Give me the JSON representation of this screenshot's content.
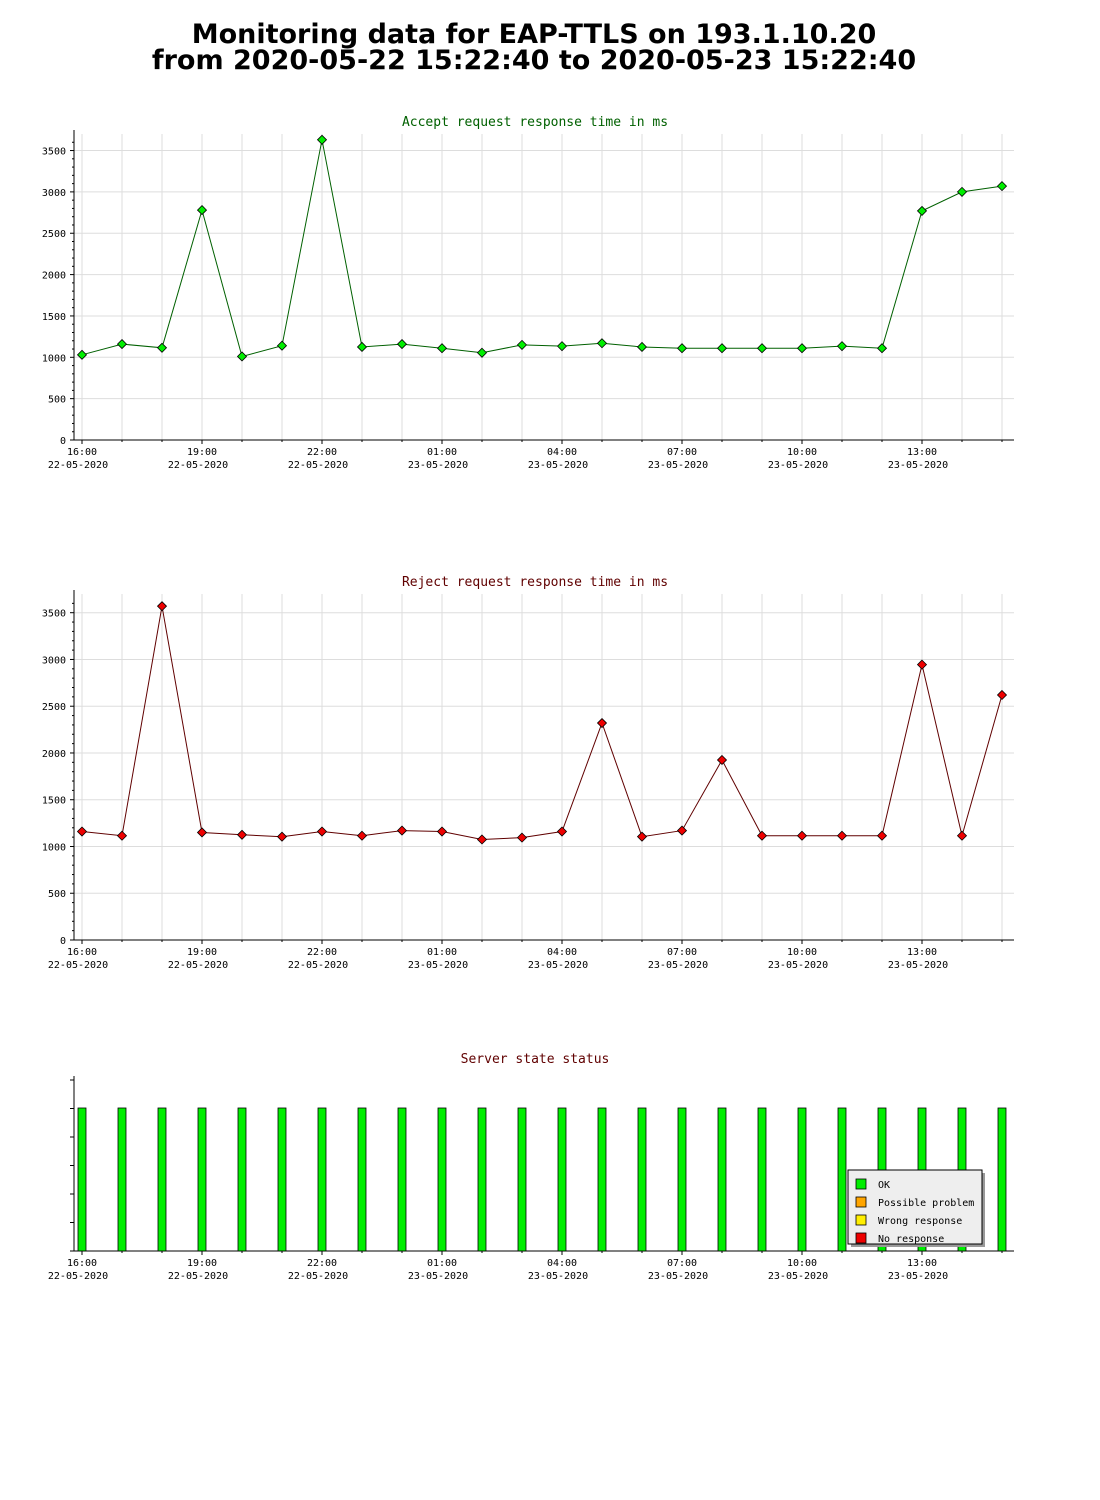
{
  "header": {
    "title_line1": "Monitoring data for EAP-TTLS on 193.1.10.20",
    "title_line2": "from 2020-05-22 15:22:40 to 2020-05-23 15:22:40"
  },
  "colors": {
    "accept_line": "#006000",
    "accept_marker": "#00ee00",
    "reject_line": "#600000",
    "reject_marker": "#ee0000",
    "status_title": "#600000",
    "ok": "#00ee00",
    "possible_problem": "#ffa500",
    "wrong_response": "#ffee00",
    "no_response": "#ee0000",
    "grid": "#dddddd"
  },
  "chart_data": [
    {
      "type": "line",
      "title": "Accept request response time in ms",
      "x_tick_labels": [
        {
          "time": "16:00",
          "date": "22-05-2020"
        },
        {
          "time": "19:00",
          "date": "22-05-2020"
        },
        {
          "time": "22:00",
          "date": "22-05-2020"
        },
        {
          "time": "01:00",
          "date": "23-05-2020"
        },
        {
          "time": "04:00",
          "date": "23-05-2020"
        },
        {
          "time": "07:00",
          "date": "23-05-2020"
        },
        {
          "time": "10:00",
          "date": "23-05-2020"
        },
        {
          "time": "13:00",
          "date": "23-05-2020"
        }
      ],
      "x": [
        "2020-05-22 16:00",
        "2020-05-22 17:00",
        "2020-05-22 18:00",
        "2020-05-22 19:00",
        "2020-05-22 20:00",
        "2020-05-22 21:00",
        "2020-05-22 22:00",
        "2020-05-22 23:00",
        "2020-05-23 00:00",
        "2020-05-23 01:00",
        "2020-05-23 02:00",
        "2020-05-23 03:00",
        "2020-05-23 04:00",
        "2020-05-23 05:00",
        "2020-05-23 06:00",
        "2020-05-23 07:00",
        "2020-05-23 08:00",
        "2020-05-23 09:00",
        "2020-05-23 10:00",
        "2020-05-23 11:00",
        "2020-05-23 12:00",
        "2020-05-23 13:00",
        "2020-05-23 14:00",
        "2020-05-23 15:00"
      ],
      "values": [
        1030,
        1160,
        1115,
        2780,
        1010,
        1140,
        3630,
        1125,
        1160,
        1110,
        1055,
        1150,
        1135,
        1170,
        1125,
        1110,
        1110,
        1110,
        1110,
        1135,
        1110,
        2770,
        3000,
        3070
      ],
      "ylim": [
        0,
        3700
      ],
      "y_ticks": [
        0,
        500,
        1000,
        1500,
        2000,
        2500,
        3000,
        3500
      ],
      "grid": true
    },
    {
      "type": "line",
      "title": "Reject request response time in ms",
      "x_tick_labels": [
        {
          "time": "16:00",
          "date": "22-05-2020"
        },
        {
          "time": "19:00",
          "date": "22-05-2020"
        },
        {
          "time": "22:00",
          "date": "22-05-2020"
        },
        {
          "time": "01:00",
          "date": "23-05-2020"
        },
        {
          "time": "04:00",
          "date": "23-05-2020"
        },
        {
          "time": "07:00",
          "date": "23-05-2020"
        },
        {
          "time": "10:00",
          "date": "23-05-2020"
        },
        {
          "time": "13:00",
          "date": "23-05-2020"
        }
      ],
      "x": [
        "2020-05-22 16:00",
        "2020-05-22 17:00",
        "2020-05-22 18:00",
        "2020-05-22 19:00",
        "2020-05-22 20:00",
        "2020-05-22 21:00",
        "2020-05-22 22:00",
        "2020-05-22 23:00",
        "2020-05-23 00:00",
        "2020-05-23 01:00",
        "2020-05-23 02:00",
        "2020-05-23 03:00",
        "2020-05-23 04:00",
        "2020-05-23 05:00",
        "2020-05-23 06:00",
        "2020-05-23 07:00",
        "2020-05-23 08:00",
        "2020-05-23 09:00",
        "2020-05-23 10:00",
        "2020-05-23 11:00",
        "2020-05-23 12:00",
        "2020-05-23 13:00",
        "2020-05-23 14:00",
        "2020-05-23 15:00"
      ],
      "values": [
        1160,
        1115,
        3570,
        1150,
        1125,
        1105,
        1160,
        1115,
        1170,
        1160,
        1075,
        1095,
        1160,
        2320,
        1105,
        1170,
        1925,
        1115,
        1115,
        1115,
        1115,
        2945,
        1115,
        2620
      ],
      "ylim": [
        0,
        3700
      ],
      "y_ticks": [
        0,
        500,
        1000,
        1500,
        2000,
        2500,
        3000,
        3500
      ],
      "grid": true
    },
    {
      "type": "bar",
      "title": "Server state status",
      "x_tick_labels": [
        {
          "time": "16:00",
          "date": "22-05-2020"
        },
        {
          "time": "19:00",
          "date": "22-05-2020"
        },
        {
          "time": "22:00",
          "date": "22-05-2020"
        },
        {
          "time": "01:00",
          "date": "23-05-2020"
        },
        {
          "time": "04:00",
          "date": "23-05-2020"
        },
        {
          "time": "07:00",
          "date": "23-05-2020"
        },
        {
          "time": "10:00",
          "date": "23-05-2020"
        },
        {
          "time": "13:00",
          "date": "23-05-2020"
        }
      ],
      "x": [
        "2020-05-22 16:00",
        "2020-05-22 17:00",
        "2020-05-22 18:00",
        "2020-05-22 19:00",
        "2020-05-22 20:00",
        "2020-05-22 21:00",
        "2020-05-22 22:00",
        "2020-05-22 23:00",
        "2020-05-23 00:00",
        "2020-05-23 01:00",
        "2020-05-23 02:00",
        "2020-05-23 03:00",
        "2020-05-23 04:00",
        "2020-05-23 05:00",
        "2020-05-23 06:00",
        "2020-05-23 07:00",
        "2020-05-23 08:00",
        "2020-05-23 09:00",
        "2020-05-23 10:00",
        "2020-05-23 11:00",
        "2020-05-23 12:00",
        "2020-05-23 13:00",
        "2020-05-23 14:00",
        "2020-05-23 15:00"
      ],
      "states": [
        "OK",
        "OK",
        "OK",
        "OK",
        "OK",
        "OK",
        "OK",
        "OK",
        "OK",
        "OK",
        "OK",
        "OK",
        "OK",
        "OK",
        "OK",
        "OK",
        "OK",
        "OK",
        "OK",
        "OK",
        "OK",
        "OK",
        "OK",
        "OK"
      ],
      "legend": {
        "placement": "bottom-right",
        "entries": [
          {
            "label": "OK",
            "color_key": "ok"
          },
          {
            "label": "Possible problem",
            "color_key": "possible_problem"
          },
          {
            "label": "Wrong response",
            "color_key": "wrong_response"
          },
          {
            "label": "No response",
            "color_key": "no_response"
          }
        ]
      },
      "grid": false
    }
  ]
}
